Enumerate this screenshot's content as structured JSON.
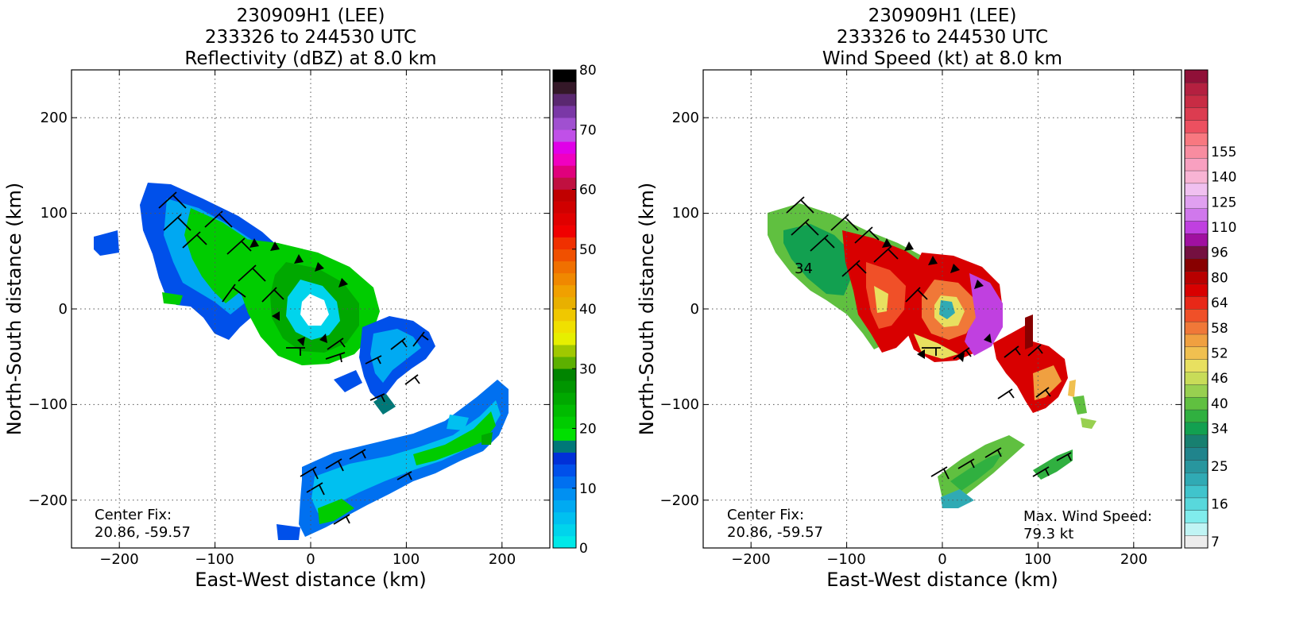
{
  "chart_data": [
    {
      "type": "heatmap",
      "title_lines": [
        "230909H1 (LEE)",
        "233326 to 244530 UTC",
        "Reflectivity (dBZ) at 8.0 km"
      ],
      "xlabel": "East-West distance (km)",
      "ylabel": "North-South distance (km)",
      "xlim": [
        -250,
        250
      ],
      "ylim": [
        -250,
        250
      ],
      "xticks": [
        -200,
        -100,
        0,
        100,
        200
      ],
      "yticks": [
        -200,
        -100,
        0,
        100,
        200
      ],
      "xtick_labels": [
        "−200",
        "−100",
        "0",
        "100",
        "200"
      ],
      "ytick_labels": [
        "−200",
        "−100",
        "0",
        "100",
        "200"
      ],
      "grid": true,
      "annotations": [
        {
          "text": "Center Fix:",
          "position": "lower-left"
        },
        {
          "text": "20.86, -59.57",
          "position": "lower-left"
        }
      ],
      "colorbar": {
        "min": 0,
        "max": 80,
        "tick_values": [
          0,
          10,
          20,
          30,
          40,
          50,
          60,
          70,
          80
        ],
        "tick_labels": [
          "0",
          "10",
          "20",
          "30",
          "40",
          "50",
          "60",
          "70",
          "80"
        ],
        "colors": [
          "#00e8e8",
          "#00d4ec",
          "#00c0f0",
          "#00aaf2",
          "#0090f2",
          "#0070f0",
          "#0050ea",
          "#0030d8",
          "#007878",
          "#00e000",
          "#00cc00",
          "#00bb00",
          "#00a800",
          "#009600",
          "#008400",
          "#5cb000",
          "#a0c800",
          "#e6ef00",
          "#f0e000",
          "#f0c800",
          "#e8b000",
          "#f0a000",
          "#f08800",
          "#f07000",
          "#f05000",
          "#f03000",
          "#f00000",
          "#e00000",
          "#d00000",
          "#c00000",
          "#c01040",
          "#e0007c",
          "#f000c0",
          "#e000e8",
          "#c050e8",
          "#a050d0",
          "#7a38a6",
          "#5a2870",
          "#341828",
          "#000000"
        ]
      },
      "field_description_regions": "vortex core near origin; northwest band; southern spiral band",
      "barbs": "wind barbs overlaid"
    },
    {
      "type": "heatmap",
      "title_lines": [
        "230909H1 (LEE)",
        "233326 to 244530 UTC",
        "Wind Speed (kt) at 8.0 km"
      ],
      "xlabel": "East-West distance (km)",
      "ylabel": "North-South distance (km)",
      "xlim": [
        -250,
        250
      ],
      "ylim": [
        -250,
        250
      ],
      "xticks": [
        -200,
        -100,
        0,
        100,
        200
      ],
      "yticks": [
        -200,
        -100,
        0,
        100,
        200
      ],
      "xtick_labels": [
        "−200",
        "−100",
        "0",
        "100",
        "200"
      ],
      "ytick_labels": [
        "−200",
        "−100",
        "0",
        "100",
        "200"
      ],
      "grid": true,
      "annotations": [
        {
          "text": "Center Fix:",
          "position": "lower-left"
        },
        {
          "text": "20.86, -59.57",
          "position": "lower-left"
        },
        {
          "text": "Max. Wind Speed:",
          "position": "lower-right"
        },
        {
          "text": "79.3 kt",
          "position": "lower-right"
        }
      ],
      "max_wind_speed_kt": 79.3,
      "colorbar": {
        "tick_labels": [
          "7",
          "16",
          "25",
          "34",
          "40",
          "46",
          "52",
          "58",
          "64",
          "80",
          "96",
          "110",
          "125",
          "140",
          "155"
        ],
        "tick_index": [
          0,
          3,
          6,
          9,
          11,
          13,
          15,
          17,
          19,
          21,
          23,
          25,
          27,
          29,
          31
        ],
        "colors": [
          "#ececec",
          "#c0f4f4",
          "#80ecec",
          "#58d8dc",
          "#40c4cc",
          "#30aab4",
          "#28969e",
          "#20848c",
          "#188070",
          "#12a050",
          "#30b040",
          "#60c040",
          "#98d050",
          "#c8dc58",
          "#e8e060",
          "#f0c050",
          "#f0a040",
          "#f07838",
          "#f05028",
          "#e82818",
          "#d80000",
          "#b80000",
          "#880000",
          "#741040",
          "#a010a0",
          "#c040e0",
          "#d078ec",
          "#e0a0f0",
          "#f0c0f0",
          "#f8b4d4",
          "#f8a0c0",
          "#f88ca0",
          "#f87880",
          "#ec5060",
          "#dc3c50",
          "#c82c44",
          "#b42040",
          "#901038"
        ]
      },
      "barbs": "wind barbs overlaid",
      "contour_label": "34"
    }
  ]
}
